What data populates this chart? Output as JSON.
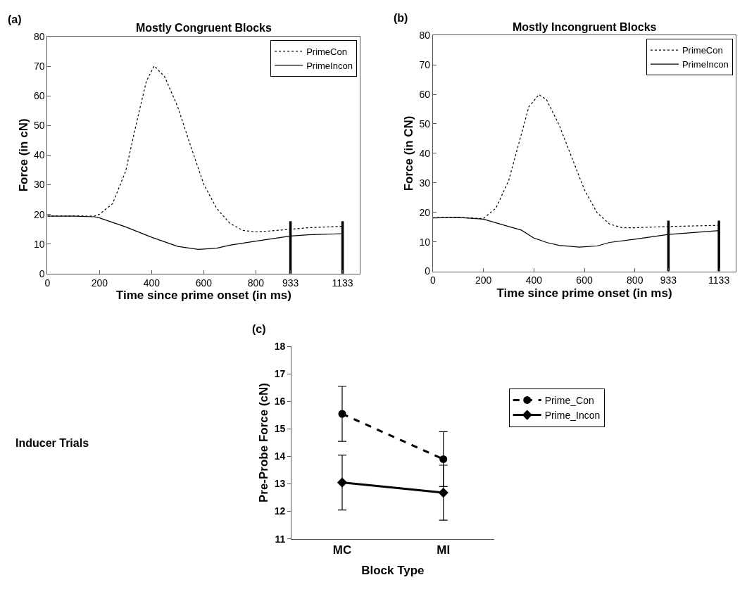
{
  "chart_data": [
    {
      "type": "line",
      "title": "Mostly Congruent Blocks",
      "xlabel": "Time since prime onset (in ms)",
      "ylabel": "Force (in cN)",
      "annotations": [
        "(a)"
      ],
      "xlim": [
        0,
        1200
      ],
      "xticks": [
        0,
        200,
        400,
        600,
        800,
        933,
        1133
      ],
      "ylim": [
        0,
        80
      ],
      "yticks": [
        0,
        10,
        20,
        30,
        40,
        50,
        60,
        70,
        80
      ],
      "legend": "top right",
      "marker": "none",
      "series": [
        {
          "name": "PrimeCon",
          "color": "#000000",
          "line_style": "dotted",
          "x": [
            0,
            100,
            180,
            200,
            250,
            300,
            350,
            380,
            410,
            450,
            500,
            550,
            600,
            650,
            700,
            750,
            800,
            850,
            933,
            1000,
            1133
          ],
          "values": [
            19.5,
            19.5,
            19.4,
            20.1,
            23.6,
            34.5,
            54,
            65,
            70.1,
            66.4,
            56.3,
            43,
            30.2,
            22,
            17,
            14.6,
            14.1,
            14.4,
            15.0,
            15.5,
            16.0
          ]
        },
        {
          "name": "PrimeIncon",
          "color": "#000000",
          "line_style": "solid",
          "x": [
            0,
            100,
            180,
            200,
            300,
            400,
            500,
            580,
            650,
            700,
            800,
            933,
            1000,
            1133
          ],
          "values": [
            19.4,
            19.4,
            19.2,
            18.8,
            15.8,
            12.3,
            9.2,
            8.2,
            8.6,
            9.6,
            11.0,
            12.7,
            13.1,
            13.5
          ]
        },
        {
          "color": "#000000",
          "line_style": "solid",
          "x": [
            933,
            933
          ],
          "values": [
            0,
            17.7
          ]
        },
        {
          "color": "#000000",
          "line_style": "solid",
          "x": [
            1133,
            1133
          ],
          "values": [
            0,
            17.7
          ]
        }
      ]
    },
    {
      "type": "line",
      "title": "Mostly Incongruent Blocks",
      "xlabel": "Time since prime onset (in ms)",
      "ylabel": "Force (in CN)",
      "annotations": [
        "(b)"
      ],
      "xlim": [
        0,
        1200
      ],
      "xticks": [
        0,
        200,
        400,
        600,
        800,
        933,
        1133
      ],
      "ylim": [
        0,
        80
      ],
      "yticks": [
        0,
        10,
        20,
        30,
        40,
        50,
        60,
        70,
        80
      ],
      "legend": "top right",
      "marker": "none",
      "series": [
        {
          "name": "PrimeCon",
          "color": "#000000",
          "line_style": "dotted",
          "x": [
            0,
            100,
            200,
            250,
            300,
            350,
            380,
            420,
            450,
            500,
            550,
            600,
            650,
            700,
            750,
            800,
            933,
            1133
          ],
          "values": [
            18.2,
            18.3,
            17.9,
            21.5,
            30.8,
            46.4,
            55.8,
            59.9,
            58.2,
            49.6,
            38.6,
            27.7,
            19.9,
            16.0,
            14.8,
            14.8,
            15.2,
            15.6
          ]
        },
        {
          "name": "PrimeIncon",
          "color": "#000000",
          "line_style": "solid",
          "x": [
            0,
            100,
            200,
            300,
            350,
            400,
            450,
            500,
            580,
            650,
            700,
            800,
            933,
            1133
          ],
          "values": [
            18.1,
            18.3,
            17.7,
            15.2,
            14.0,
            11.3,
            9.8,
            8.8,
            8.2,
            8.6,
            9.8,
            10.9,
            12.5,
            13.8
          ]
        },
        {
          "color": "#000000",
          "line_style": "solid",
          "x": [
            933,
            933
          ],
          "values": [
            0,
            17.2
          ]
        },
        {
          "color": "#000000",
          "line_style": "solid",
          "x": [
            1133,
            1133
          ],
          "values": [
            0,
            17.2
          ]
        }
      ]
    },
    {
      "type": "line",
      "xlabel": "Block Type",
      "ylabel": "Pre-Probe Force (cN)",
      "annotations": [
        "(c)",
        "Inducer Trials"
      ],
      "categories": [
        "MC",
        "MI"
      ],
      "ylim": [
        11,
        18
      ],
      "yticks": [
        11,
        12,
        13,
        14,
        15,
        16,
        17,
        18
      ],
      "legend": "right",
      "series": [
        {
          "name": "Prime_Con",
          "color": "#000000",
          "line_style": "dashed",
          "marker": "circle",
          "values": [
            15.55,
            13.9
          ],
          "errors": [
            1,
            1
          ]
        },
        {
          "name": "Prime_Incon",
          "color": "#000000",
          "line_style": "solid",
          "marker": "diamond",
          "values": [
            13.05,
            12.68
          ],
          "errors": [
            1,
            1
          ]
        }
      ]
    }
  ]
}
